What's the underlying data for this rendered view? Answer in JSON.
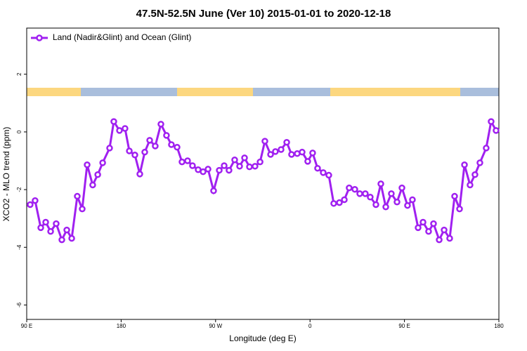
{
  "chart_data": {
    "type": "line",
    "title": "47.5N-52.5N June (Ver 10)   2015-01-01 to 2020-12-18",
    "xlabel": "Longitude (deg E)",
    "ylabel": "XCO2 - MLO trend (ppm)",
    "xlim": [
      90,
      540
    ],
    "ylim": [
      -6.5,
      3.6
    ],
    "xticks": [
      {
        "value": 90,
        "label": "90 E"
      },
      180,
      {
        "value": 270,
        "label": "90 W"
      },
      {
        "value": 360,
        "label": "0"
      },
      {
        "value": 450,
        "label": "90 E"
      },
      {
        "value": 540,
        "label": "180"
      }
    ],
    "yticks": [
      -6,
      -4,
      -2,
      0,
      2
    ],
    "legend": "top-left",
    "x": [
      93.3,
      98.0,
      103.4,
      108.1,
      112.8,
      118.1,
      123.5,
      128.2,
      132.9,
      138.2,
      142.9,
      147.6,
      152.9,
      157.7,
      162.4,
      169.0,
      173.0,
      178.4,
      183.7,
      187.8,
      193.1,
      197.8,
      202.5,
      207.2,
      212.5,
      217.9,
      223.2,
      227.9,
      233.3,
      238.0,
      243.3,
      248.0,
      253.4,
      258.1,
      262.8,
      268.1,
      273.5,
      278.2,
      282.8,
      288.2,
      292.9,
      297.6,
      302.3,
      307.6,
      312.4,
      317.0,
      322.4,
      327.0,
      332.4,
      337.8,
      342.4,
      347.8,
      352.5,
      357.8,
      362.5,
      367.2,
      372.6,
      377.9,
      382.6,
      388.0,
      392.7,
      397.3,
      402.7,
      407.4,
      412.7,
      417.4,
      422.8,
      427.5,
      432.2,
      437.5,
      442.9,
      447.6,
      452.9,
      457.6,
      463.0,
      467.7,
      473.0,
      477.7,
      483.1,
      487.8,
      493.1,
      497.8,
      502.5,
      507.2,
      512.5,
      517.2,
      521.9,
      527.9,
      532.6,
      537.3
    ],
    "series": [
      {
        "name": "Land (Nadir&Glint) and Ocean (Glint)",
        "color": "#a020f0",
        "values": [
          -2.52,
          -2.38,
          -3.32,
          -3.13,
          -3.45,
          -3.18,
          -3.74,
          -3.4,
          -3.69,
          -2.23,
          -2.67,
          -1.14,
          -1.84,
          -1.48,
          -1.07,
          -0.56,
          0.36,
          0.05,
          0.12,
          -0.66,
          -0.8,
          -1.46,
          -0.7,
          -0.29,
          -0.49,
          0.27,
          -0.12,
          -0.44,
          -0.53,
          -1.04,
          -1.0,
          -1.17,
          -1.31,
          -1.38,
          -1.29,
          -2.04,
          -1.33,
          -1.17,
          -1.33,
          -0.97,
          -1.19,
          -0.9,
          -1.21,
          -1.19,
          -1.04,
          -0.32,
          -0.78,
          -0.68,
          -0.61,
          -0.36,
          -0.78,
          -0.75,
          -0.7,
          -1.02,
          -0.73,
          -1.26,
          -1.41,
          -1.5,
          -2.48,
          -2.45,
          -2.35,
          -1.94,
          -1.99,
          -2.14,
          -2.14,
          -2.26,
          -2.52,
          -1.8,
          -2.6,
          -2.14,
          -2.43,
          -1.94,
          -2.55,
          -2.35,
          -3.32,
          -3.13,
          -3.45,
          -3.18,
          -3.74,
          -3.4,
          -3.69,
          -2.23,
          -2.67,
          -1.14,
          -1.84,
          -1.48,
          -1.07,
          -0.56,
          0.36,
          0.05
        ]
      }
    ]
  }
}
